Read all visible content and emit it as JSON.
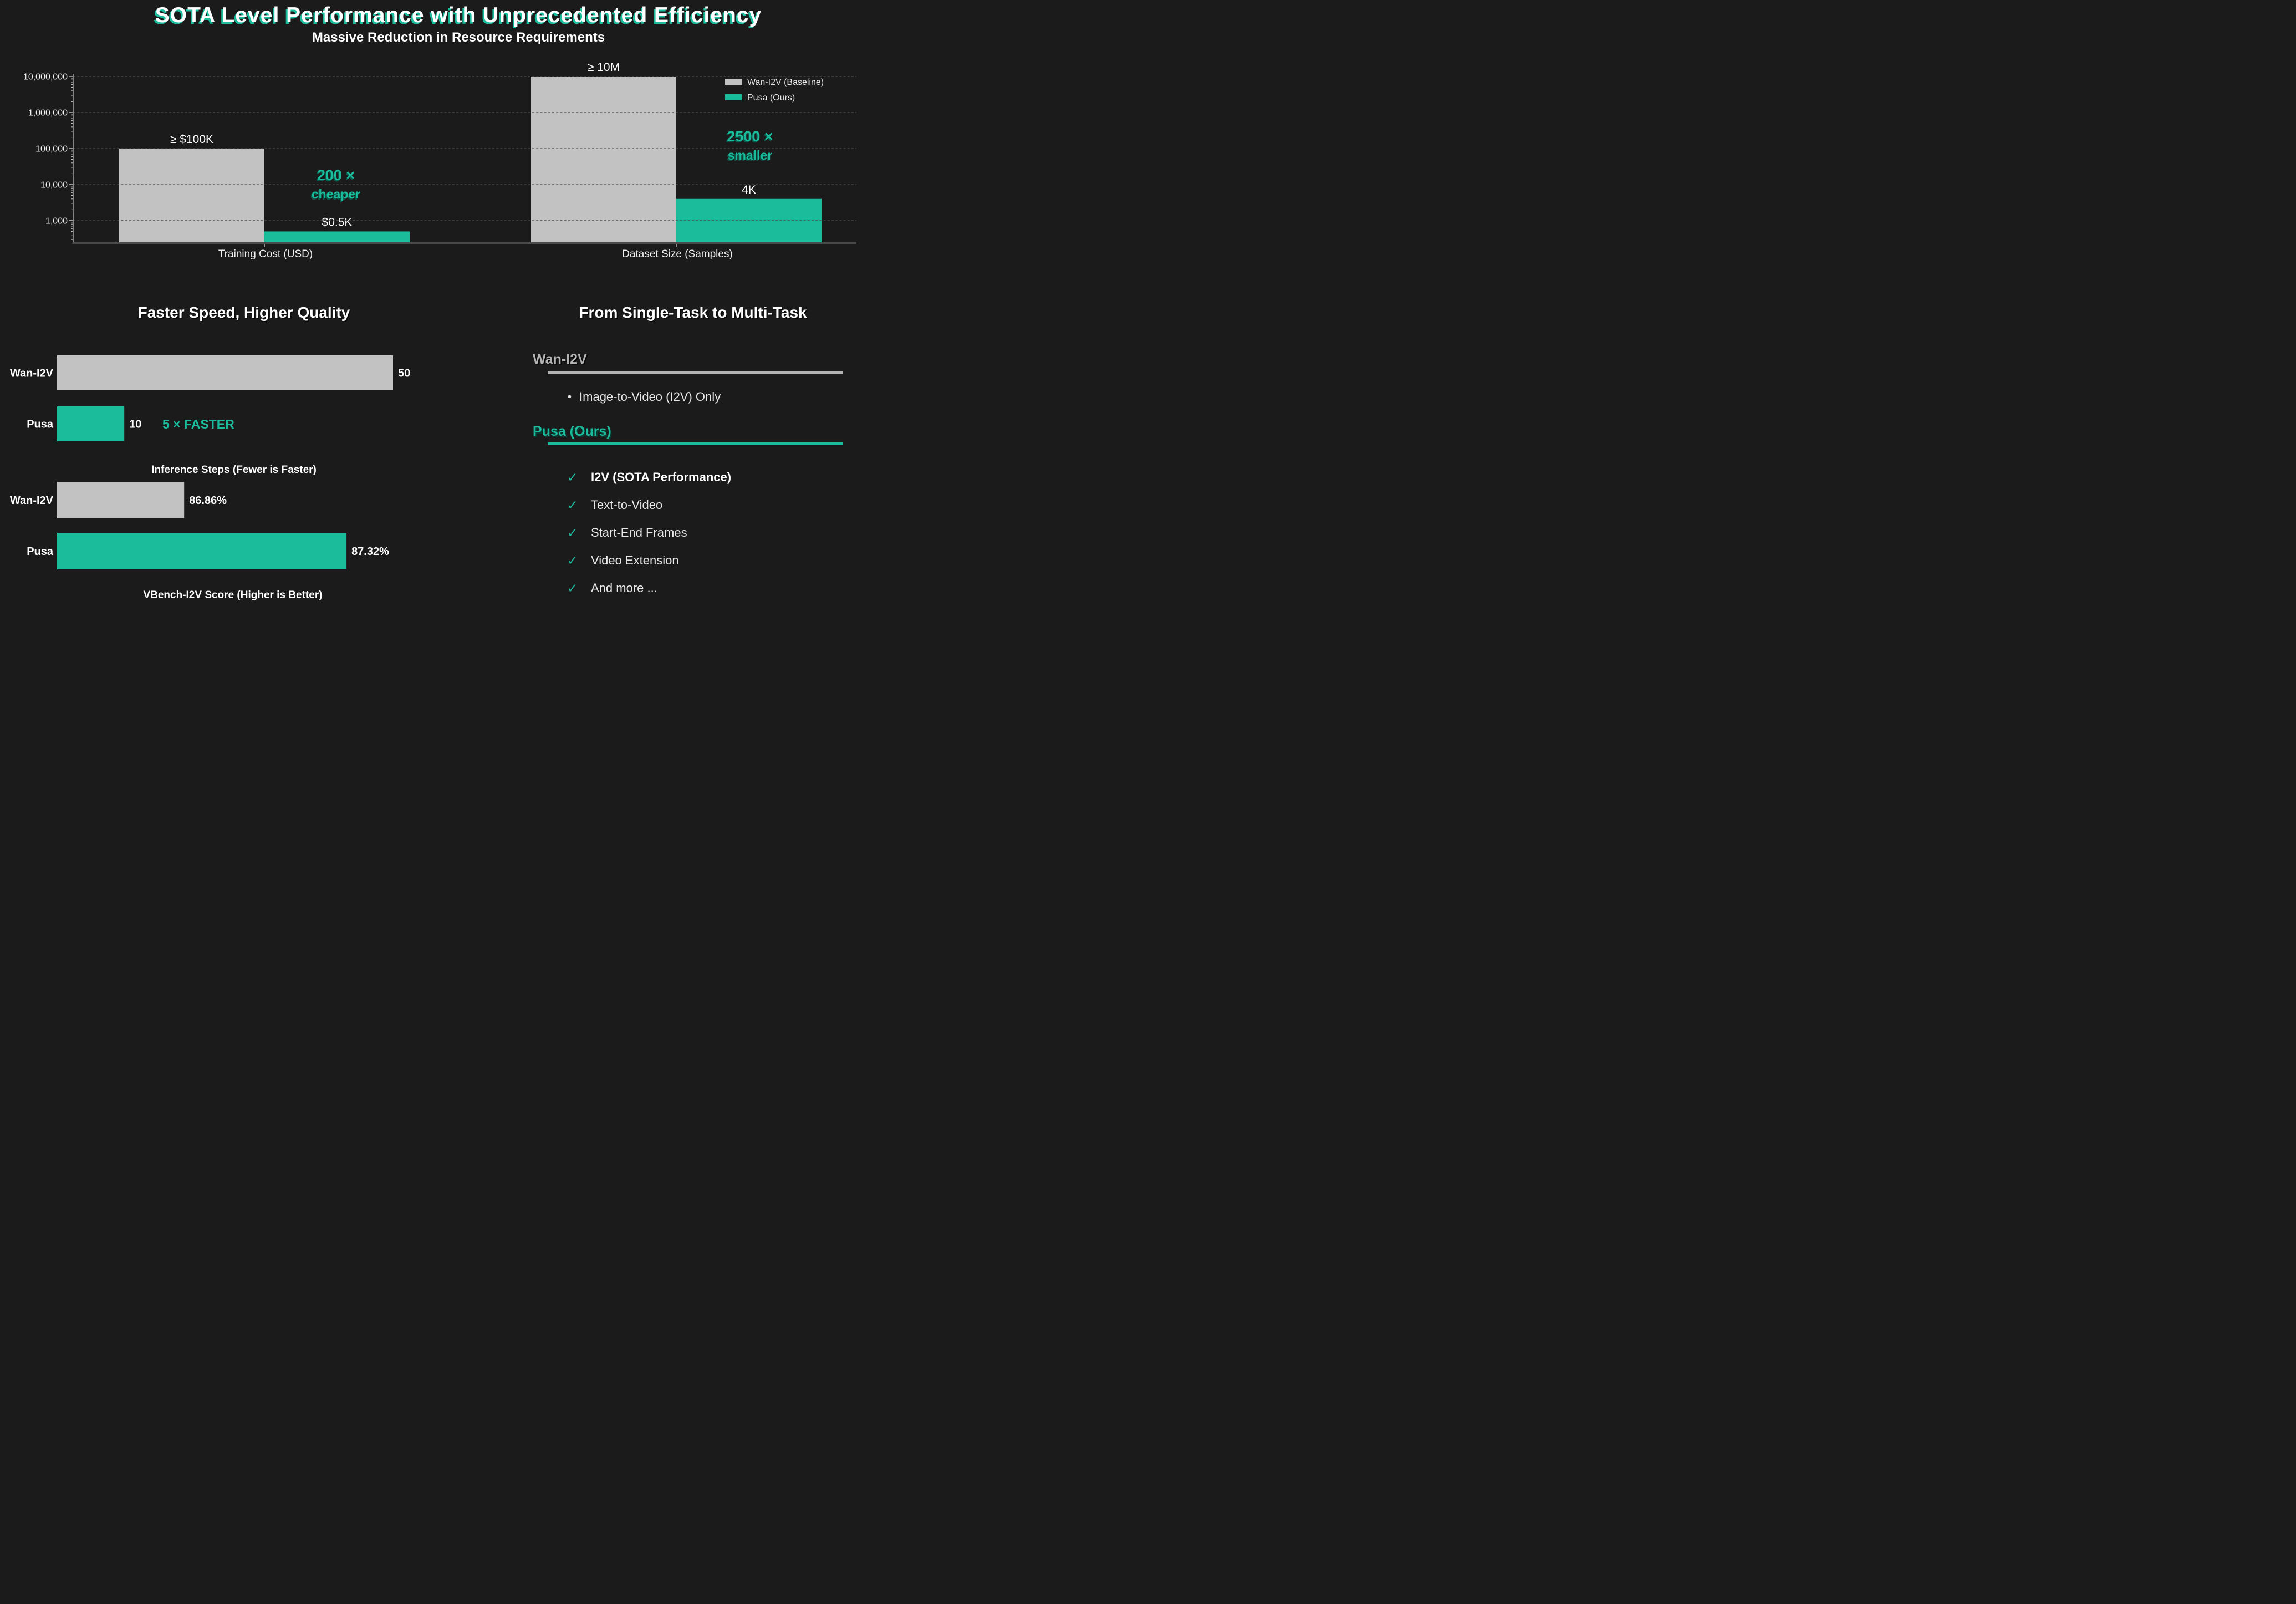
{
  "header": {
    "title": "SOTA Level Performance with Unprecedented Efficiency",
    "subtitle": "Massive Reduction in Resource Requirements"
  },
  "colors": {
    "accent": "#1abc9c",
    "accent_shadow": "#0a5a4b",
    "baseline_gray": "#c2c2c2",
    "heading_gray": "#b3b3b3",
    "background": "#1b1b1b"
  },
  "legend": [
    {
      "label": "Wan-I2V (Baseline)",
      "color": "#c2c2c2"
    },
    {
      "label": "Pusa (Ours)",
      "color": "#1abc9c"
    }
  ],
  "chart_data": [
    {
      "type": "bar",
      "yscale": "log",
      "ylim": [
        250,
        10000000
      ],
      "yticks": [
        1000,
        10000,
        100000,
        1000000,
        10000000
      ],
      "ytick_labels": [
        "1,000",
        "10,000",
        "100,000",
        "1,000,000",
        "10,000,000"
      ],
      "categories": [
        "Training Cost (USD)",
        "Dataset Size (Samples)"
      ],
      "grid": "dashed-horizontal",
      "legend_position": "upper-right",
      "series": [
        {
          "name": "Wan-I2V (Baseline)",
          "color": "#c2c2c2",
          "values": [
            100000,
            10000000
          ],
          "bar_labels": [
            "≥ $100K",
            "≥ 10M"
          ]
        },
        {
          "name": "Pusa (Ours)",
          "color": "#1abc9c",
          "values": [
            500,
            4000
          ],
          "bar_labels": [
            "$0.5K",
            "4K"
          ]
        }
      ],
      "annotations": [
        {
          "lines": [
            "200 ×",
            "cheaper"
          ],
          "category": 0
        },
        {
          "lines": [
            "2500 ×",
            "smaller"
          ],
          "category": 1
        }
      ]
    },
    {
      "type": "bar-horizontal",
      "section_title": "Faster Speed, Higher Quality",
      "xlabel": "Inference Steps (Fewer is Faster)",
      "categories": [
        "Wan-I2V",
        "Pusa"
      ],
      "values": [
        50,
        10
      ],
      "value_labels": [
        "50",
        "10"
      ],
      "colors": [
        "#c2c2c2",
        "#1abc9c"
      ],
      "xlim": [
        0,
        50
      ],
      "annotation": "5 ×  FASTER"
    },
    {
      "type": "bar-horizontal",
      "xlabel": "VBench-I2V Score (Higher is Better)",
      "categories": [
        "Wan-I2V",
        "Pusa"
      ],
      "values": [
        86.86,
        87.32
      ],
      "value_labels": [
        "86.86%",
        "87.32%"
      ],
      "colors": [
        "#c2c2c2",
        "#1abc9c"
      ],
      "xlim": [
        86.5,
        88
      ]
    }
  ],
  "right_panel": {
    "title": "From Single-Task to Multi-Task",
    "bullet_char": "•",
    "check_char": "✓",
    "wan": {
      "heading": "Wan-I2V",
      "bullet": "Image-to-Video (I2V) Only"
    },
    "pusa": {
      "heading": "Pusa (Ours)",
      "items": [
        {
          "text": "I2V (SOTA Performance)",
          "bold": true
        },
        {
          "text": "Text-to-Video",
          "bold": false
        },
        {
          "text": "Start-End Frames",
          "bold": false
        },
        {
          "text": "Video Extension",
          "bold": false
        },
        {
          "text": "And more ...",
          "bold": false
        }
      ]
    }
  }
}
